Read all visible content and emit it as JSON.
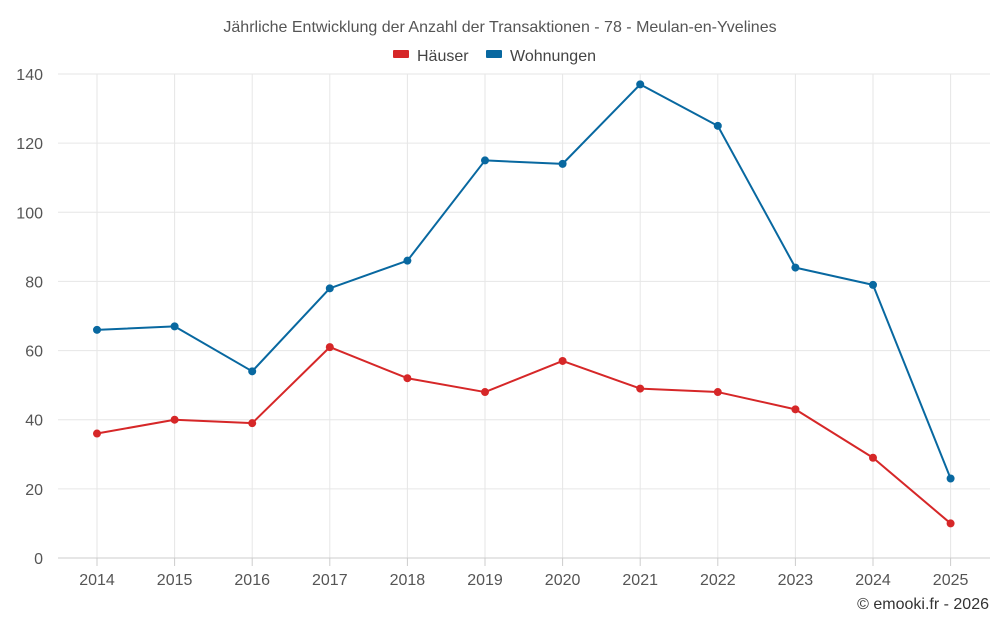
{
  "chart_data": {
    "type": "line",
    "title": "Jährliche Entwicklung der Anzahl der Transaktionen - 78 - Meulan-en-Yvelines",
    "categories": [
      "2014",
      "2015",
      "2016",
      "2017",
      "2018",
      "2019",
      "2020",
      "2021",
      "2022",
      "2023",
      "2024",
      "2025"
    ],
    "series": [
      {
        "name": "Häuser",
        "color": "#d62728",
        "values": [
          36,
          40,
          39,
          61,
          52,
          48,
          57,
          49,
          48,
          43,
          29,
          10
        ]
      },
      {
        "name": "Wohnungen",
        "color": "#0868a0",
        "values": [
          66,
          67,
          54,
          78,
          86,
          115,
          114,
          137,
          125,
          84,
          79,
          23
        ]
      }
    ],
    "ylim": [
      0,
      140
    ],
    "yticks": [
      "0",
      "20",
      "40",
      "60",
      "80",
      "100",
      "120",
      "140"
    ],
    "xlabel": "",
    "ylabel": "",
    "grid": true,
    "legend": "top-center"
  },
  "credit": "© emooki.fr - 2026"
}
